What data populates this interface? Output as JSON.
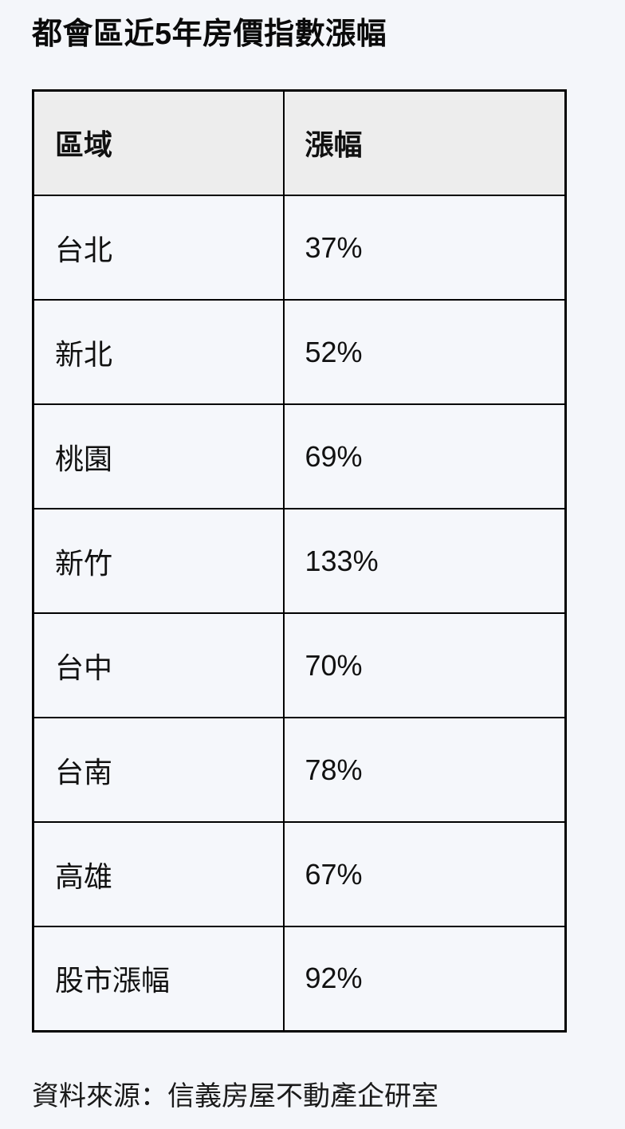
{
  "page": {
    "title": "都會區近5年房價指數漲幅",
    "source_note": "資料來源：信義房屋不動產企研室"
  },
  "table": {
    "headers": {
      "region": "區域",
      "change": "漲幅"
    },
    "rows": [
      {
        "region": "台北",
        "change": "37%"
      },
      {
        "region": "新北",
        "change": "52%"
      },
      {
        "region": "桃園",
        "change": "69%"
      },
      {
        "region": "新竹",
        "change": "133%"
      },
      {
        "region": "台中",
        "change": "70%"
      },
      {
        "region": "台南",
        "change": "78%"
      },
      {
        "region": "高雄",
        "change": "67%"
      },
      {
        "region": "股市漲幅",
        "change": "92%"
      }
    ]
  },
  "colors": {
    "page_bg": "#f4f6fa",
    "header_bg": "#ededed",
    "cell_bg": "#f5f7fb",
    "border": "#000000",
    "text": "#111111"
  },
  "chart_data": {
    "type": "table",
    "title": "都會區近5年房價指數漲幅",
    "columns": [
      "區域",
      "漲幅"
    ],
    "categories": [
      "台北",
      "新北",
      "桃園",
      "新竹",
      "台中",
      "台南",
      "高雄",
      "股市漲幅"
    ],
    "values_percent": [
      37,
      52,
      69,
      133,
      70,
      78,
      67,
      92
    ],
    "source": "資料來源：信義房屋不動產企研室"
  }
}
